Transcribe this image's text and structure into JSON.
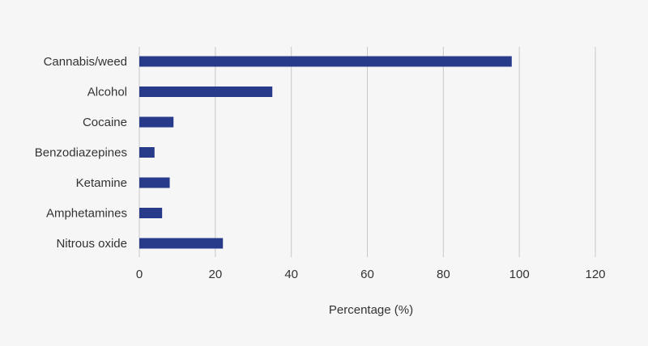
{
  "chart_data": {
    "type": "bar",
    "orientation": "horizontal",
    "categories": [
      "Cannabis/weed",
      "Alcohol",
      "Cocaine",
      "Benzodiazepines",
      "Ketamine",
      "Amphetamines",
      "Nitrous oxide"
    ],
    "values": [
      98,
      35,
      9,
      4,
      8,
      6,
      22
    ],
    "xlabel": "Percentage (%)",
    "ylabel": "",
    "xlim": [
      0,
      120
    ],
    "xticks": [
      "0",
      "20",
      "40",
      "60",
      "80",
      "100",
      "120"
    ],
    "grid": "vertical",
    "legend": "none"
  },
  "colors": {
    "bar": "#283a8a",
    "grid": "#c8c8c8",
    "background": "#f6f6f6",
    "text": "#333333"
  }
}
